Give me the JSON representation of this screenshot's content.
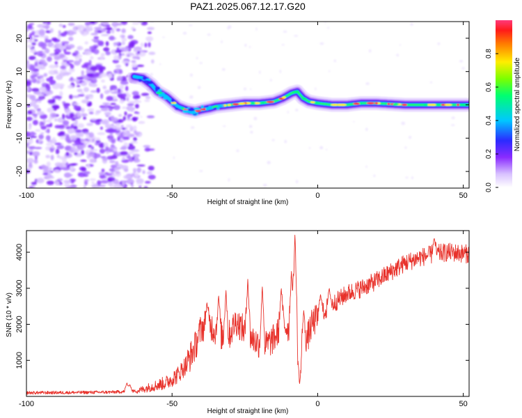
{
  "title": "PAZ1.2025.067.12.17.G20",
  "chart_data": [
    {
      "type": "heatmap",
      "xlabel": "Height of straight line (km)",
      "ylabel": "Frequency (Hz)",
      "xlim": [
        -100,
        52
      ],
      "ylim": [
        -25,
        25
      ],
      "xticks": [
        "-100",
        "-50",
        "0",
        "50"
      ],
      "yticks": [
        "-20",
        "-10",
        "0",
        "10",
        "20"
      ],
      "xtick_values": [
        -100,
        -50,
        0,
        50
      ],
      "ytick_values": [
        -20,
        -10,
        0,
        10,
        20
      ],
      "colorbar": {
        "label": "Normalized spectral amplitude",
        "range": [
          0,
          1
        ],
        "ticks": [
          "0.0",
          "0.2",
          "0.4",
          "0.6",
          "0.8"
        ],
        "tick_values": [
          0.0,
          0.2,
          0.4,
          0.6,
          0.8
        ],
        "colormap": [
          "#ffffff",
          "#c9a8ff",
          "#7f1cff",
          "#2a1bff",
          "#00cfff",
          "#11ff28",
          "#ffee00",
          "#ff2020",
          "#ff3d7a"
        ]
      },
      "noise_region_x": [
        -100,
        -62
      ],
      "ridge": [
        [
          -63,
          8.5
        ],
        [
          -60,
          8.0
        ],
        [
          -57,
          6.0
        ],
        [
          -55,
          4.0
        ],
        [
          -52,
          2.5
        ],
        [
          -50,
          1.0
        ],
        [
          -48,
          -0.5
        ],
        [
          -45,
          -1.5
        ],
        [
          -42,
          -2.0
        ],
        [
          -40,
          -1.5
        ],
        [
          -37,
          -1.0
        ],
        [
          -35,
          -0.5
        ],
        [
          -30,
          0.0
        ],
        [
          -25,
          0.5
        ],
        [
          -20,
          0.5
        ],
        [
          -15,
          1.0
        ],
        [
          -12,
          2.0
        ],
        [
          -9,
          3.5
        ],
        [
          -7,
          4.0
        ],
        [
          -5,
          2.0
        ],
        [
          -3,
          1.0
        ],
        [
          0,
          0.5
        ],
        [
          5,
          0.0
        ],
        [
          10,
          0.0
        ],
        [
          15,
          0.5
        ],
        [
          20,
          0.5
        ],
        [
          30,
          0.0
        ],
        [
          40,
          0.0
        ],
        [
          52,
          0.0
        ]
      ]
    },
    {
      "type": "line",
      "xlabel": "Height of straight line (km)",
      "ylabel": "SNR (10 * v/v)",
      "xlim": [
        -100,
        52
      ],
      "ylim": [
        0,
        4600
      ],
      "xticks": [
        "-100",
        "-50",
        "0",
        "50"
      ],
      "yticks": [
        "1000",
        "2000",
        "3000",
        "4000"
      ],
      "xtick_values": [
        -100,
        -50,
        0,
        50
      ],
      "ytick_values": [
        1000,
        2000,
        3000,
        4000
      ],
      "color": "#e8312a",
      "trend": [
        [
          -100,
          100
        ],
        [
          -80,
          110
        ],
        [
          -70,
          120
        ],
        [
          -62,
          150
        ],
        [
          -58,
          250
        ],
        [
          -52,
          380
        ],
        [
          -48,
          600
        ],
        [
          -45,
          900
        ],
        [
          -42,
          1400
        ],
        [
          -40,
          1900
        ],
        [
          -37,
          2000
        ],
        [
          -34,
          1700
        ],
        [
          -31,
          1600
        ],
        [
          -28,
          2100
        ],
        [
          -25,
          1800
        ],
        [
          -21,
          1500
        ],
        [
          -18,
          1400
        ],
        [
          -15,
          1600
        ],
        [
          -12,
          2000
        ],
        [
          -10,
          1900
        ],
        [
          -8,
          2000
        ],
        [
          -6,
          1100
        ],
        [
          -4,
          1500
        ],
        [
          -2,
          2000
        ],
        [
          0,
          2200
        ],
        [
          5,
          2550
        ],
        [
          10,
          2850
        ],
        [
          15,
          3000
        ],
        [
          20,
          3200
        ],
        [
          25,
          3450
        ],
        [
          30,
          3700
        ],
        [
          35,
          3850
        ],
        [
          40,
          3950
        ],
        [
          45,
          4000
        ],
        [
          52,
          3950
        ]
      ],
      "spikes": [
        [
          -65.5,
          380
        ],
        [
          -64.5,
          330
        ],
        [
          -38.0,
          2600
        ],
        [
          -34.0,
          2800
        ],
        [
          -31.5,
          2950
        ],
        [
          -24.0,
          3250
        ],
        [
          -19.0,
          3050
        ],
        [
          -12.5,
          3000
        ],
        [
          -9.0,
          3500
        ],
        [
          -7.8,
          4550
        ],
        [
          -6.2,
          350
        ],
        [
          -4.8,
          2400
        ],
        [
          1.0,
          2850
        ],
        [
          4.0,
          3000
        ],
        [
          40.0,
          4400
        ]
      ]
    }
  ]
}
